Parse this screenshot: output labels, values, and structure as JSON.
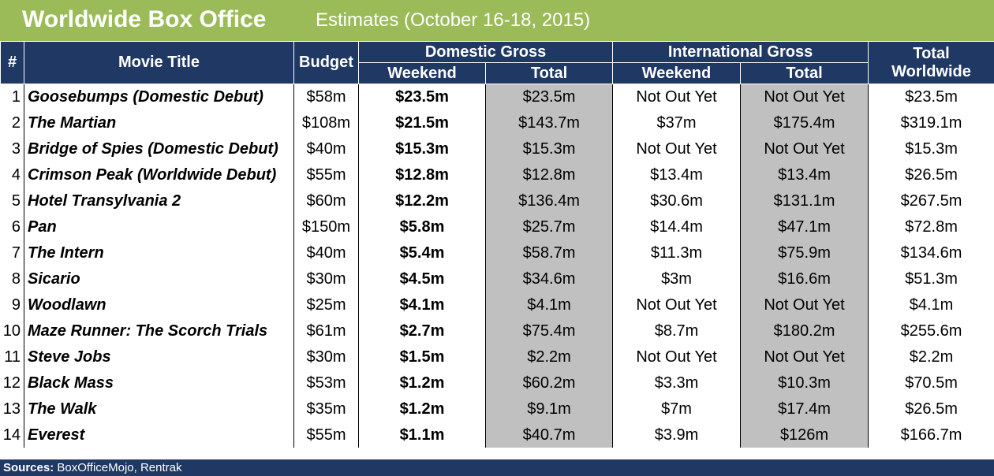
{
  "header": {
    "title": "Worldwide Box Office",
    "subtitle": "Estimates (October 16-18, 2015)"
  },
  "columns": {
    "rank": "#",
    "movie_title": "Movie Title",
    "budget": "Budget",
    "domestic_gross": "Domestic Gross",
    "international_gross": "International Gross",
    "total_worldwide_line1": "Total",
    "total_worldwide_line2": "Worldwide",
    "weekend": "Weekend",
    "total": "Total"
  },
  "rows": [
    {
      "rank": "1",
      "title": "Goosebumps (Domestic Debut)",
      "budget": "$58m",
      "dom_weekend": "$23.5m",
      "dom_total": "$23.5m",
      "intl_weekend": "Not Out Yet",
      "intl_total": "Not Out Yet",
      "worldwide": "$23.5m"
    },
    {
      "rank": "2",
      "title": "The Martian",
      "budget": "$108m",
      "dom_weekend": "$21.5m",
      "dom_total": "$143.7m",
      "intl_weekend": "$37m",
      "intl_total": "$175.4m",
      "worldwide": "$319.1m"
    },
    {
      "rank": "3",
      "title": "Bridge of Spies (Domestic Debut)",
      "budget": "$40m",
      "dom_weekend": "$15.3m",
      "dom_total": "$15.3m",
      "intl_weekend": "Not Out Yet",
      "intl_total": "Not Out Yet",
      "worldwide": "$15.3m"
    },
    {
      "rank": "4",
      "title": "Crimson Peak (Worldwide Debut)",
      "budget": "$55m",
      "dom_weekend": "$12.8m",
      "dom_total": "$12.8m",
      "intl_weekend": "$13.4m",
      "intl_total": "$13.4m",
      "worldwide": "$26.5m"
    },
    {
      "rank": "5",
      "title": "Hotel Transylvania 2",
      "budget": "$60m",
      "dom_weekend": "$12.2m",
      "dom_total": "$136.4m",
      "intl_weekend": "$30.6m",
      "intl_total": "$131.1m",
      "worldwide": "$267.5m"
    },
    {
      "rank": "6",
      "title": "Pan",
      "budget": "$150m",
      "dom_weekend": "$5.8m",
      "dom_total": "$25.7m",
      "intl_weekend": "$14.4m",
      "intl_total": "$47.1m",
      "worldwide": "$72.8m"
    },
    {
      "rank": "7",
      "title": "The Intern",
      "budget": "$40m",
      "dom_weekend": "$5.4m",
      "dom_total": "$58.7m",
      "intl_weekend": "$11.3m",
      "intl_total": "$75.9m",
      "worldwide": "$134.6m"
    },
    {
      "rank": "8",
      "title": "Sicario",
      "budget": "$30m",
      "dom_weekend": "$4.5m",
      "dom_total": "$34.6m",
      "intl_weekend": "$3m",
      "intl_total": "$16.6m",
      "worldwide": "$51.3m"
    },
    {
      "rank": "9",
      "title": "Woodlawn",
      "budget": "$25m",
      "dom_weekend": "$4.1m",
      "dom_total": "$4.1m",
      "intl_weekend": "Not Out Yet",
      "intl_total": "Not Out Yet",
      "worldwide": "$4.1m"
    },
    {
      "rank": "10",
      "title": "Maze Runner: The Scorch Trials",
      "budget": "$61m",
      "dom_weekend": "$2.7m",
      "dom_total": "$75.4m",
      "intl_weekend": "$8.7m",
      "intl_total": "$180.2m",
      "worldwide": "$255.6m"
    },
    {
      "rank": "11",
      "title": "Steve Jobs",
      "budget": "$30m",
      "dom_weekend": "$1.5m",
      "dom_total": "$2.2m",
      "intl_weekend": "Not Out Yet",
      "intl_total": "Not Out Yet",
      "worldwide": "$2.2m"
    },
    {
      "rank": "12",
      "title": "Black Mass",
      "budget": "$53m",
      "dom_weekend": "$1.2m",
      "dom_total": "$60.2m",
      "intl_weekend": "$3.3m",
      "intl_total": "$10.3m",
      "worldwide": "$70.5m"
    },
    {
      "rank": "13",
      "title": "The Walk",
      "budget": "$35m",
      "dom_weekend": "$1.2m",
      "dom_total": "$9.1m",
      "intl_weekend": "$7m",
      "intl_total": "$17.4m",
      "worldwide": "$26.5m"
    },
    {
      "rank": "14",
      "title": "Everest",
      "budget": "$55m",
      "dom_weekend": "$1.1m",
      "dom_total": "$40.7m",
      "intl_weekend": "$3.9m",
      "intl_total": "$126m",
      "worldwide": "$166.7m"
    }
  ],
  "footer": {
    "label": "Sources:",
    "text": "BoxOfficeMojo, Rentrak"
  },
  "colors": {
    "banner": "#9bbb59",
    "header": "#1f3864",
    "shaded_column": "#c0c0c0"
  }
}
